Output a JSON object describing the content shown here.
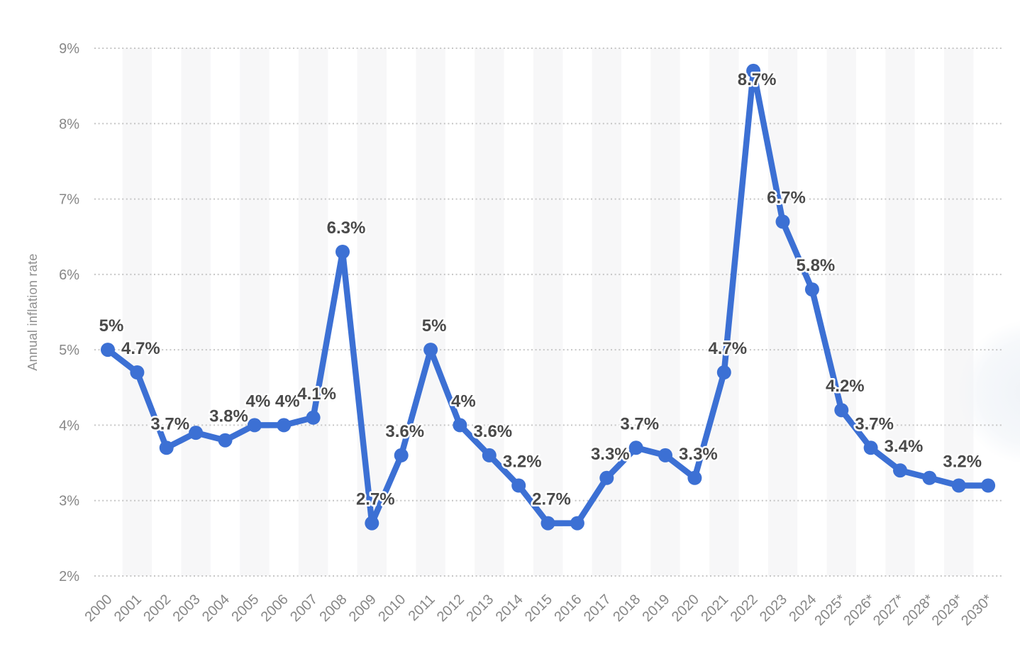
{
  "colors": {
    "line": "#3c70d4",
    "marker": "#3c70d4",
    "band": "#f7f7f8",
    "grid": "#c6c6c6",
    "tick_text": "#878787",
    "axis_title_text": "#909090",
    "data_label_text": "#4a4a4a",
    "data_label_halo": "#ffffff",
    "background": "#ffffff",
    "edge_blob": "#eef2f7"
  },
  "chart_data": {
    "type": "line",
    "title": "",
    "xlabel": "",
    "ylabel": "Annual inflation rate",
    "ylim": [
      2,
      9
    ],
    "yticks": [
      "9%",
      "8%",
      "7%",
      "6%",
      "5%",
      "4%",
      "3%",
      "2%"
    ],
    "grid": "horizontal-dotted",
    "legend": "none",
    "background_bands": "alternating-year-columns",
    "categories": [
      "2000",
      "2001",
      "2002",
      "2003",
      "2004",
      "2005",
      "2006",
      "2007",
      "2008",
      "2009",
      "2010",
      "2011",
      "2012",
      "2013",
      "2014",
      "2015",
      "2016",
      "2017",
      "2018",
      "2019",
      "2020",
      "2021",
      "2022",
      "2023",
      "2024",
      "2025*",
      "2026*",
      "2027*",
      "2028*",
      "2029*",
      "2030*"
    ],
    "series": [
      {
        "name": "Annual inflation rate",
        "values": [
          5,
          4.7,
          3.7,
          3.9,
          3.8,
          4,
          4,
          4.1,
          6.3,
          2.7,
          3.6,
          5,
          4,
          3.6,
          3.2,
          2.7,
          2.7,
          3.3,
          3.7,
          3.6,
          3.3,
          4.7,
          8.7,
          6.7,
          5.8,
          4.2,
          3.7,
          3.4,
          3.3,
          3.2,
          3.2
        ],
        "point_labels": [
          "5%",
          "4.7%",
          "3.7%",
          null,
          "3.8%",
          "4%",
          "4%",
          "4.1%",
          "6.3%",
          "2.7%",
          "3.6%",
          "5%",
          "4%",
          "3.6%",
          "3.2%",
          "2.7%",
          null,
          "3.3%",
          "3.7%",
          null,
          "3.3%",
          "4.7%",
          "8.7%",
          "6.7%",
          "5.8%",
          "4.2%",
          "3.7%",
          "3.4%",
          null,
          "3.2%",
          null
        ]
      }
    ]
  }
}
